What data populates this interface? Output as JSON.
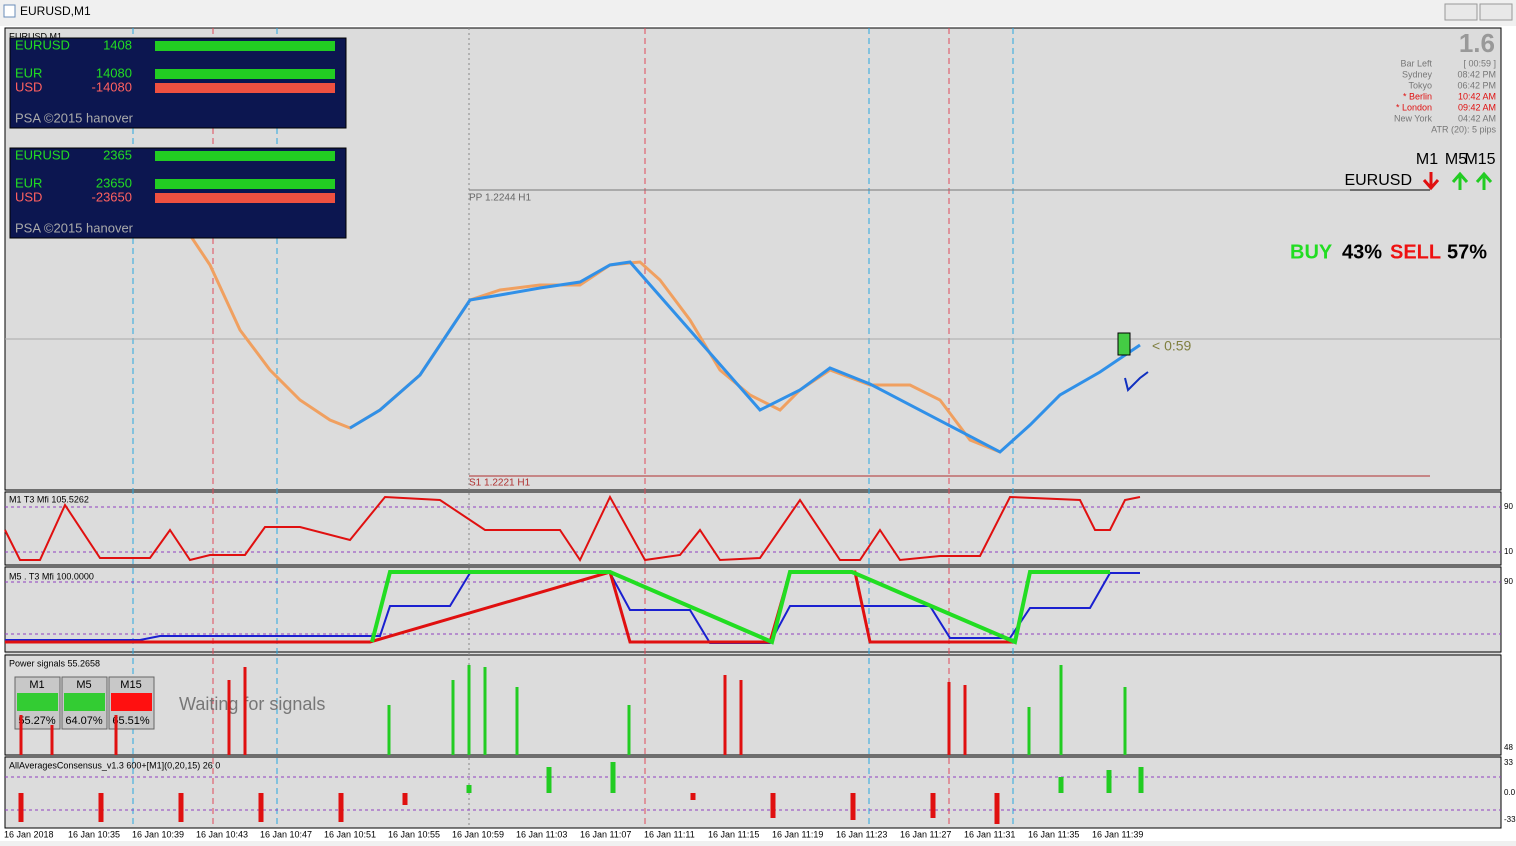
{
  "window": {
    "title": "EURUSD,M1"
  },
  "chart": {
    "label": "EURUSD,M1",
    "panels": [
      {
        "symbol": "EURUSD",
        "lots": "1408",
        "rows": [
          {
            "currency": "EUR",
            "value": "14080"
          },
          {
            "currency": "USD",
            "value": "-14080"
          }
        ],
        "footer": "PSA ©2015 hanover"
      },
      {
        "symbol": "EURUSD",
        "lots": "2365",
        "rows": [
          {
            "currency": "EUR",
            "value": "23650"
          },
          {
            "currency": "USD",
            "value": "-23650"
          }
        ],
        "footer": "PSA ©2015 hanover"
      }
    ],
    "info": {
      "price": "1.6",
      "rows": [
        {
          "name": "Bar Left",
          "time": "[ 00:59 ]"
        },
        {
          "name": "Sydney",
          "time": "08:42 PM"
        },
        {
          "name": "Tokyo",
          "time": "06:42 PM"
        },
        {
          "name": "* Berlin",
          "time": "10:42 AM"
        },
        {
          "name": "* London",
          "time": "09:42 AM"
        },
        {
          "name": "New York",
          "time": "04:42 AM"
        }
      ],
      "atr": "ATR (20): 5 pips"
    },
    "timeframes": [
      "M1",
      "M5",
      "M15"
    ],
    "symbol": "EURUSD",
    "buy_label": "BUY",
    "buy": "43%",
    "sell_label": "SELL",
    "sell": "57%",
    "pp": "PP 1.2244 H1",
    "s1": "S1 1.2221 H1",
    "countdown": "< 0:59"
  },
  "indicators": [
    {
      "label": "M1  T3 Mfi  105.5262"
    },
    {
      "label": "M5 . T3 Mfi  100.0000"
    },
    {
      "label": "Power signals 55.2658"
    },
    {
      "label": "AllAveragesConsensus_v1.3 600+[M1](0,20,15) 26 0"
    }
  ],
  "power": {
    "boxes": [
      {
        "tf": "M1",
        "pct": "55.27%"
      },
      {
        "tf": "M5",
        "pct": "64.07%"
      },
      {
        "tf": "M15",
        "pct": "65.51%"
      }
    ],
    "status": "Waiting for signals"
  },
  "right_axis": [
    "90",
    "10",
    "90",
    "48",
    "33",
    "0.0",
    "-33"
  ],
  "time_axis": [
    "16 Jan 2018",
    "16 Jan 10:35",
    "16 Jan 10:39",
    "16 Jan 10:43",
    "16 Jan 10:47",
    "16 Jan 10:51",
    "16 Jan 10:55",
    "16 Jan 10:59",
    "16 Jan 11:03",
    "16 Jan 11:07",
    "16 Jan 11:11",
    "16 Jan 11:15",
    "16 Jan 11:19",
    "16 Jan 11:23",
    "16 Jan 11:27",
    "16 Jan 11:31",
    "16 Jan 11:35",
    "16 Jan 11:39"
  ]
}
